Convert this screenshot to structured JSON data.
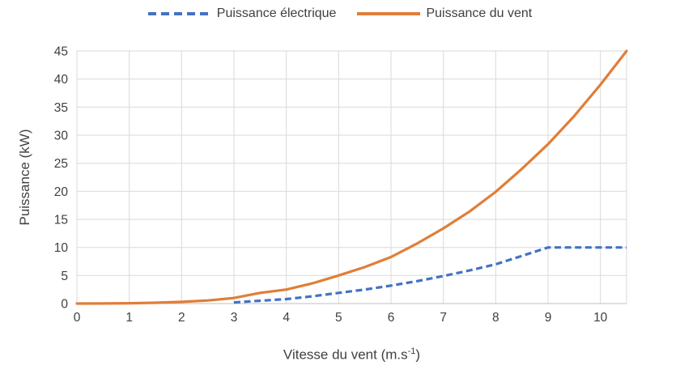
{
  "chart_data": {
    "type": "line",
    "title": "",
    "ylabel": "Puissance (kW)",
    "xlabel": "Vitesse du vent (m.s⁻¹)",
    "xlabel_parts": {
      "prefix": "Vitesse du vent (m.s",
      "sup": "-1",
      "suffix": ")"
    },
    "xlim": [
      0,
      10.5
    ],
    "ylim": [
      0,
      45
    ],
    "x_ticks": [
      0,
      1,
      2,
      3,
      4,
      5,
      6,
      7,
      8,
      9,
      10
    ],
    "y_ticks": [
      0,
      5,
      10,
      15,
      20,
      25,
      30,
      35,
      40,
      45
    ],
    "grid": true,
    "legend_position": "top",
    "colors": {
      "grid": "#D9D9D9",
      "axis_line": "#BFBFBF",
      "axis_text": "#404040"
    },
    "series": [
      {
        "id": "electric-power",
        "name": "Puissance électrique",
        "color": "#4472C4",
        "style": "dashed",
        "x": [
          3,
          3.5,
          4,
          4.5,
          5,
          5.5,
          6,
          6.5,
          7,
          7.5,
          8,
          8.5,
          9,
          9.5,
          10,
          10.5
        ],
        "values": [
          0.2,
          0.5,
          0.8,
          1.3,
          1.9,
          2.5,
          3.2,
          4.0,
          4.9,
          5.9,
          7.0,
          8.5,
          10.0,
          10.0,
          10.0,
          10.0
        ]
      },
      {
        "id": "wind-power",
        "name": "Puissance du vent",
        "color": "#E07E39",
        "style": "solid",
        "x": [
          0,
          0.5,
          1,
          1.5,
          2,
          2.5,
          3,
          3.5,
          4,
          4.5,
          5,
          5.5,
          6,
          6.5,
          7,
          7.5,
          8,
          8.5,
          9,
          9.5,
          10,
          10.5
        ],
        "values": [
          0,
          0.02,
          0.06,
          0.15,
          0.3,
          0.55,
          1.0,
          1.9,
          2.5,
          3.6,
          5.0,
          6.5,
          8.3,
          10.7,
          13.4,
          16.4,
          19.9,
          24.0,
          28.4,
          33.4,
          39.0,
          45.0
        ]
      }
    ]
  }
}
